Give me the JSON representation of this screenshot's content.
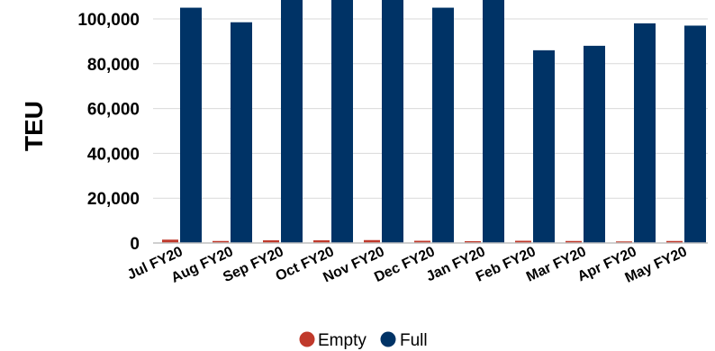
{
  "chart_data": {
    "type": "bar",
    "title": "",
    "xlabel": "",
    "ylabel": "TEU",
    "ylim": [
      0,
      110000
    ],
    "yticks": [
      0,
      20000,
      40000,
      60000,
      80000,
      100000
    ],
    "ytick_labels": [
      "0",
      "20,000",
      "40,000",
      "60,000",
      "80,000",
      "100,000"
    ],
    "grid": true,
    "legend_position": "bottom",
    "categories": [
      "Jul FY20",
      "Aug FY20",
      "Sep FY20",
      "Oct FY20",
      "Nov FY20",
      "Dec FY20",
      "Jan FY20",
      "Feb FY20",
      "Mar FY20",
      "Apr FY20",
      "May FY20"
    ],
    "series": [
      {
        "name": "Empty",
        "color": "#C0392B",
        "values": [
          1500,
          900,
          1200,
          1200,
          1300,
          1000,
          800,
          1000,
          900,
          700,
          900
        ]
      },
      {
        "name": "Full",
        "color": "#003366",
        "values": [
          105000,
          98500,
          111000,
          111000,
          111000,
          105000,
          111000,
          86000,
          88000,
          98000,
          97000
        ]
      }
    ]
  }
}
